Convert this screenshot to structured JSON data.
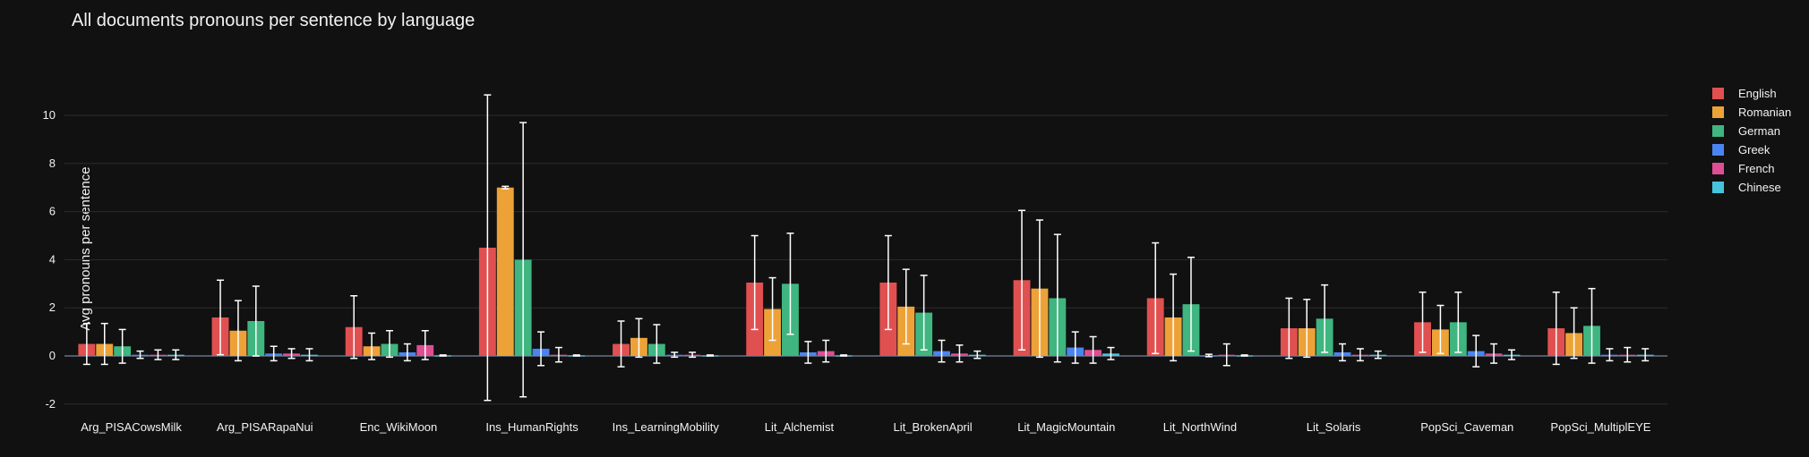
{
  "chart_data": {
    "type": "bar",
    "title": "All documents pronouns per sentence by language",
    "xlabel": "",
    "ylabel": "Avg pronouns per sentence",
    "ylim": [
      -2.4,
      11.8
    ],
    "yticks": [
      -2,
      0,
      2,
      4,
      6,
      8,
      10
    ],
    "grid": true,
    "legend_position": "top-right",
    "categories": [
      "Arg_PISACowsMilk",
      "Arg_PISARapaNui",
      "Enc_WikiMoon",
      "Ins_HumanRights",
      "Ins_LearningMobility",
      "Lit_Alchemist",
      "Lit_BrokenApril",
      "Lit_MagicMountain",
      "Lit_NorthWind",
      "Lit_Solaris",
      "PopSci_Caveman",
      "PopSci_MultiplEYE"
    ],
    "series": [
      {
        "name": "English",
        "color": "#e05050",
        "values": [
          0.5,
          1.6,
          1.2,
          4.5,
          0.5,
          3.05,
          3.05,
          3.15,
          2.4,
          1.15,
          1.4,
          1.15
        ],
        "error": [
          0.85,
          1.55,
          1.3,
          6.35,
          0.95,
          1.95,
          1.95,
          2.9,
          2.3,
          1.25,
          1.25,
          1.5
        ]
      },
      {
        "name": "Romanian",
        "color": "#eda238",
        "values": [
          0.5,
          1.05,
          0.4,
          7.0,
          0.75,
          1.95,
          2.05,
          2.8,
          1.6,
          1.15,
          1.1,
          0.95
        ],
        "error": [
          0.85,
          1.25,
          0.55,
          0.05,
          0.8,
          1.3,
          1.55,
          2.85,
          1.8,
          1.2,
          1.0,
          1.05
        ]
      },
      {
        "name": "German",
        "color": "#3fb580",
        "values": [
          0.4,
          1.45,
          0.5,
          4.0,
          0.5,
          3.0,
          1.8,
          2.4,
          2.15,
          1.55,
          1.4,
          1.25
        ],
        "error": [
          0.7,
          1.45,
          0.55,
          5.7,
          0.8,
          2.1,
          1.55,
          2.65,
          1.95,
          1.4,
          1.25,
          1.55
        ]
      },
      {
        "name": "Greek",
        "color": "#4a84f0",
        "values": [
          0.05,
          0.1,
          0.15,
          0.3,
          0.05,
          0.15,
          0.2,
          0.35,
          0.02,
          0.15,
          0.2,
          0.05
        ],
        "error": [
          0.15,
          0.3,
          0.35,
          0.7,
          0.1,
          0.45,
          0.45,
          0.65,
          0.05,
          0.35,
          0.65,
          0.25
        ]
      },
      {
        "name": "French",
        "color": "#dd4f92",
        "values": [
          0.05,
          0.1,
          0.45,
          0.05,
          0.05,
          0.2,
          0.1,
          0.25,
          0.05,
          0.05,
          0.1,
          0.05
        ],
        "error": [
          0.2,
          0.2,
          0.6,
          0.3,
          0.1,
          0.45,
          0.35,
          0.55,
          0.45,
          0.25,
          0.4,
          0.3
        ]
      },
      {
        "name": "Chinese",
        "color": "#45c4dc",
        "values": [
          0.05,
          0.05,
          0.02,
          0.02,
          0.02,
          0.02,
          0.05,
          0.1,
          0.02,
          0.05,
          0.05,
          0.05
        ],
        "error": [
          0.2,
          0.25,
          0.02,
          0.02,
          0.02,
          0.02,
          0.15,
          0.25,
          0.02,
          0.15,
          0.2,
          0.25
        ]
      }
    ]
  }
}
